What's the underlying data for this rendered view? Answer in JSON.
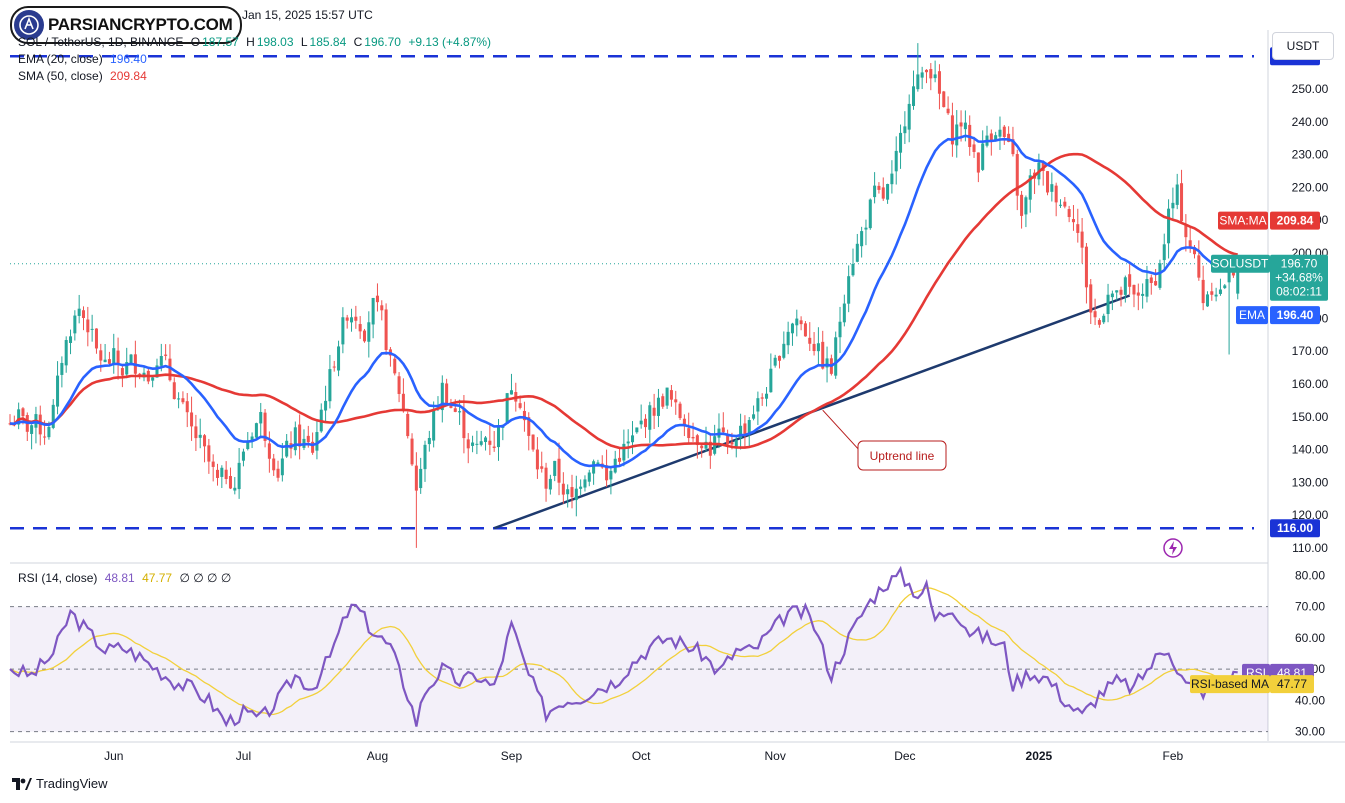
{
  "header": {
    "brand": "PARSIANCRYPTO.COM",
    "date": "Jan 15, 2025 15:57 UTC",
    "symbol_line": "SOL / TetherUS, 1D, BINANCE",
    "ohlc": {
      "O": "187.57",
      "H": "198.03",
      "L": "185.84",
      "C": "196.70",
      "change": "+9.13 (+4.87%)"
    },
    "ema_label": "EMA (20, close)",
    "ema_value": "196.40",
    "sma_label": "SMA (50, close)",
    "sma_value": "209.84",
    "currency_button": "USDT"
  },
  "colors": {
    "up": "#26a69a",
    "down": "#ef5350",
    "ema": "#2962ff",
    "sma": "#e53935",
    "rsi": "#7e57c2",
    "rsi_ma": "#f2d03b",
    "trend": "#1e3a6e",
    "level": "#1a33d6"
  },
  "chart_data": {
    "type": "candlestick",
    "price_axis": {
      "ticks": [
        110,
        120,
        130,
        140,
        150,
        160,
        170,
        180,
        190,
        200,
        210,
        220,
        230,
        240,
        250,
        260
      ],
      "range": [
        106,
        268
      ]
    },
    "time_axis": {
      "labels": [
        "Jun",
        "Jul",
        "Aug",
        "Sep",
        "Oct",
        "Nov",
        "Dec",
        "2025",
        "Feb"
      ],
      "range": [
        "2024-05-08",
        "2025-02-23"
      ]
    },
    "levels": [
      {
        "value": 260,
        "label": "260.00"
      },
      {
        "value": 116,
        "label": "116.00"
      }
    ],
    "trendline": {
      "from": {
        "date": "2024-08-28",
        "price": 116
      },
      "to": {
        "date": "2025-01-22",
        "price": 187
      },
      "annotation": "Uptrend line"
    },
    "last": {
      "symbol": "SOLUSDT",
      "price": "196.70",
      "change": "+34.68%",
      "countdown": "08:02:11"
    },
    "sma_tag": {
      "label": "SMA:MA",
      "value": "209.84"
    },
    "ema_tag": {
      "label": "EMA",
      "value": "196.40"
    },
    "close": [
      [
        0,
        148
      ],
      [
        2,
        150
      ],
      [
        4,
        147
      ],
      [
        6,
        148
      ],
      [
        8,
        145
      ],
      [
        10,
        152
      ],
      [
        12,
        168
      ],
      [
        14,
        177
      ],
      [
        16,
        183
      ],
      [
        18,
        178
      ],
      [
        20,
        170
      ],
      [
        22,
        166
      ],
      [
        24,
        168
      ],
      [
        26,
        164
      ],
      [
        28,
        167
      ],
      [
        30,
        165
      ],
      [
        32,
        162
      ],
      [
        34,
        168
      ],
      [
        36,
        166
      ],
      [
        38,
        158
      ],
      [
        40,
        152
      ],
      [
        42,
        146
      ],
      [
        44,
        142
      ],
      [
        46,
        136
      ],
      [
        48,
        130
      ],
      [
        50,
        133
      ],
      [
        52,
        129
      ],
      [
        54,
        140
      ],
      [
        56,
        146
      ],
      [
        58,
        150
      ],
      [
        60,
        140
      ],
      [
        62,
        133
      ],
      [
        64,
        140
      ],
      [
        66,
        144
      ],
      [
        68,
        142
      ],
      [
        70,
        140
      ],
      [
        72,
        152
      ],
      [
        74,
        162
      ],
      [
        76,
        173
      ],
      [
        78,
        182
      ],
      [
        80,
        181
      ],
      [
        82,
        176
      ],
      [
        84,
        184
      ],
      [
        86,
        180
      ],
      [
        88,
        166
      ],
      [
        90,
        158
      ],
      [
        92,
        145
      ],
      [
        94,
        128
      ],
      [
        96,
        140
      ],
      [
        98,
        150
      ],
      [
        100,
        159
      ],
      [
        102,
        153
      ],
      [
        104,
        150
      ],
      [
        106,
        142
      ],
      [
        108,
        140
      ],
      [
        110,
        144
      ],
      [
        112,
        142
      ],
      [
        114,
        150
      ],
      [
        116,
        160
      ],
      [
        118,
        155
      ],
      [
        120,
        143
      ],
      [
        122,
        135
      ],
      [
        124,
        130
      ],
      [
        126,
        134
      ],
      [
        128,
        128
      ],
      [
        130,
        124
      ],
      [
        132,
        131
      ],
      [
        134,
        135
      ],
      [
        136,
        138
      ],
      [
        138,
        130
      ],
      [
        140,
        137
      ],
      [
        142,
        140
      ],
      [
        144,
        143
      ],
      [
        146,
        148
      ],
      [
        148,
        151
      ],
      [
        150,
        154
      ],
      [
        152,
        157
      ],
      [
        154,
        152
      ],
      [
        156,
        149
      ],
      [
        158,
        144
      ],
      [
        160,
        143
      ],
      [
        162,
        140
      ],
      [
        164,
        145
      ],
      [
        166,
        140
      ],
      [
        168,
        145
      ],
      [
        170,
        147
      ],
      [
        172,
        152
      ],
      [
        174,
        156
      ],
      [
        176,
        162
      ],
      [
        178,
        170
      ],
      [
        180,
        177
      ],
      [
        182,
        180
      ],
      [
        184,
        176
      ],
      [
        186,
        172
      ],
      [
        188,
        167
      ],
      [
        190,
        164
      ],
      [
        192,
        180
      ],
      [
        194,
        195
      ],
      [
        196,
        202
      ],
      [
        198,
        210
      ],
      [
        200,
        218
      ],
      [
        202,
        217
      ],
      [
        204,
        222
      ],
      [
        206,
        235
      ],
      [
        208,
        248
      ],
      [
        210,
        252
      ],
      [
        212,
        258
      ],
      [
        214,
        252
      ],
      [
        216,
        244
      ],
      [
        218,
        236
      ],
      [
        220,
        240
      ],
      [
        222,
        234
      ],
      [
        224,
        227
      ],
      [
        226,
        236
      ],
      [
        228,
        238
      ],
      [
        230,
        235
      ],
      [
        232,
        228
      ],
      [
        234,
        210
      ],
      [
        236,
        222
      ],
      [
        238,
        226
      ],
      [
        240,
        220
      ],
      [
        242,
        218
      ],
      [
        244,
        214
      ],
      [
        246,
        212
      ],
      [
        248,
        200
      ],
      [
        250,
        182
      ],
      [
        252,
        178
      ],
      [
        254,
        189
      ],
      [
        256,
        186
      ],
      [
        258,
        190
      ],
      [
        260,
        186
      ],
      [
        262,
        189
      ],
      [
        264,
        190
      ],
      [
        266,
        196
      ],
      [
        268,
        212
      ],
      [
        270,
        218
      ],
      [
        272,
        206
      ],
      [
        274,
        198
      ],
      [
        276,
        186
      ],
      [
        278,
        190
      ],
      [
        280,
        188
      ],
      [
        282,
        194
      ],
      [
        284,
        196
      ]
    ],
    "rsi": {
      "label": "RSI (14, close)",
      "value": "48.81",
      "ma_value": "47.77",
      "extra": "∅ ∅ ∅ ∅",
      "axis_ticks": [
        30,
        40,
        50,
        60,
        70,
        80
      ],
      "range": [
        27,
        83
      ],
      "tag_rsi": "RSI",
      "tag_ma": "RSI-based MA",
      "values": [
        [
          0,
          50
        ],
        [
          5,
          48
        ],
        [
          10,
          55
        ],
        [
          14,
          68
        ],
        [
          18,
          62
        ],
        [
          22,
          56
        ],
        [
          26,
          57
        ],
        [
          30,
          54
        ],
        [
          34,
          50
        ],
        [
          38,
          46
        ],
        [
          42,
          44
        ],
        [
          46,
          40
        ],
        [
          50,
          33
        ],
        [
          54,
          36
        ],
        [
          58,
          34
        ],
        [
          62,
          40
        ],
        [
          66,
          48
        ],
        [
          70,
          44
        ],
        [
          74,
          54
        ],
        [
          78,
          68
        ],
        [
          80,
          70
        ],
        [
          84,
          62
        ],
        [
          88,
          57
        ],
        [
          92,
          42
        ],
        [
          94,
          33
        ],
        [
          96,
          43
        ],
        [
          100,
          50
        ],
        [
          104,
          46
        ],
        [
          108,
          48
        ],
        [
          112,
          44
        ],
        [
          116,
          64
        ],
        [
          120,
          48
        ],
        [
          124,
          36
        ],
        [
          128,
          40
        ],
        [
          132,
          41
        ],
        [
          136,
          44
        ],
        [
          140,
          46
        ],
        [
          144,
          52
        ],
        [
          148,
          57
        ],
        [
          152,
          60
        ],
        [
          156,
          58
        ],
        [
          160,
          55
        ],
        [
          164,
          49
        ],
        [
          168,
          56
        ],
        [
          172,
          56
        ],
        [
          176,
          62
        ],
        [
          180,
          68
        ],
        [
          184,
          68
        ],
        [
          186,
          64
        ],
        [
          190,
          48
        ],
        [
          194,
          60
        ],
        [
          198,
          70
        ],
        [
          202,
          77
        ],
        [
          206,
          80
        ],
        [
          210,
          74
        ],
        [
          212,
          76
        ],
        [
          214,
          66
        ],
        [
          218,
          70
        ],
        [
          222,
          62
        ],
        [
          226,
          60
        ],
        [
          230,
          57
        ],
        [
          232,
          45
        ],
        [
          236,
          49
        ],
        [
          240,
          47
        ],
        [
          244,
          40
        ],
        [
          248,
          35
        ],
        [
          252,
          42
        ],
        [
          256,
          46
        ],
        [
          260,
          44
        ],
        [
          262,
          48
        ],
        [
          266,
          55
        ],
        [
          268,
          57
        ],
        [
          270,
          50
        ],
        [
          272,
          45
        ],
        [
          276,
          43
        ],
        [
          280,
          44
        ],
        [
          284,
          49
        ]
      ]
    }
  },
  "footer": {
    "brand": "TradingView"
  }
}
